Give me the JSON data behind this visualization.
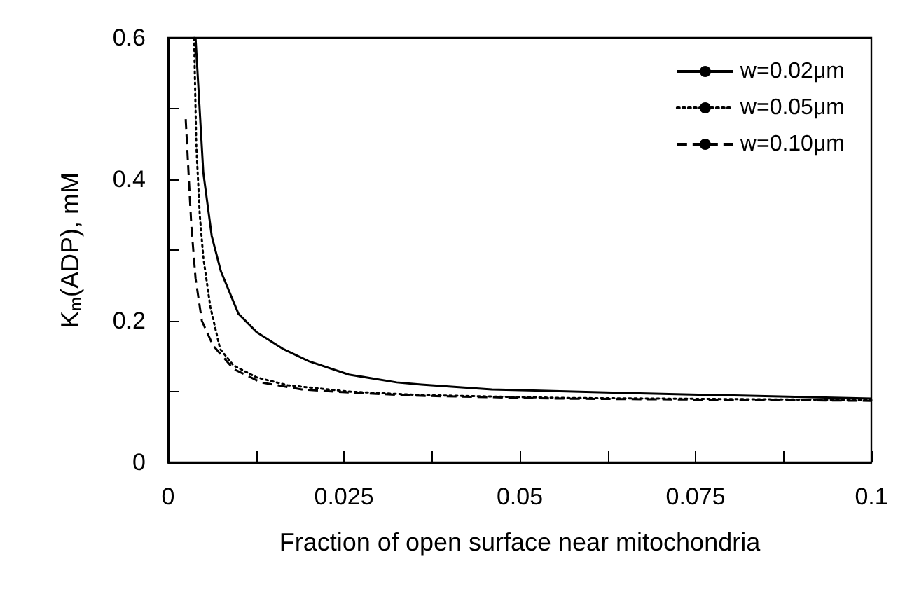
{
  "chart_data": {
    "type": "line",
    "xlabel": "Fraction of open surface near mitochondria",
    "ylabel": "K$_{m}$(ADP), mM",
    "xlim": [
      0,
      0.1
    ],
    "ylim": [
      0,
      0.6
    ],
    "xticks": [
      0,
      {
        "value": 0.0125,
        "label": null
      },
      0.025,
      {
        "value": 0.0375,
        "label": null
      },
      0.05,
      {
        "value": 0.0625,
        "label": null
      },
      0.075,
      {
        "value": 0.0875,
        "label": null
      },
      0.1
    ],
    "yticks": [
      0,
      {
        "value": 0.1,
        "label": null
      },
      0.2,
      {
        "value": 0.3,
        "label": null
      },
      0.4,
      {
        "value": 0.5,
        "label": null
      },
      0.6
    ],
    "legend": "top right",
    "grid": false,
    "marker": "none",
    "series": [
      {
        "name": "w=0.02μm",
        "color": "#000000",
        "line_style": "solid",
        "x": [
          0.0039,
          0.005,
          0.0062,
          0.0075,
          0.01,
          0.0126,
          0.0164,
          0.02,
          0.0257,
          0.0325,
          0.036,
          0.046,
          0.065,
          0.1
        ],
        "values": [
          0.6,
          0.41,
          0.32,
          0.27,
          0.21,
          0.184,
          0.16,
          0.143,
          0.124,
          0.113,
          0.11,
          0.103,
          0.098,
          0.09
        ]
      },
      {
        "name": "w=0.05μm",
        "color": "#000000",
        "line_style": "dotted",
        "x": [
          0.0037,
          0.004,
          0.0045,
          0.005,
          0.006,
          0.0074,
          0.0093,
          0.0126,
          0.017,
          0.0257,
          0.036,
          0.056,
          0.1
        ],
        "values": [
          0.6,
          0.45,
          0.35,
          0.29,
          0.22,
          0.16,
          0.137,
          0.12,
          0.109,
          0.1,
          0.095,
          0.091,
          0.088
        ]
      },
      {
        "name": "w=0.10μm",
        "color": "#000000",
        "line_style": "dashed",
        "x": [
          0.0025,
          0.0029,
          0.0033,
          0.0039,
          0.0048,
          0.0064,
          0.0093,
          0.0132,
          0.019,
          0.0267,
          0.036,
          0.056,
          0.1
        ],
        "values": [
          0.485,
          0.41,
          0.335,
          0.26,
          0.2,
          0.165,
          0.132,
          0.113,
          0.103,
          0.098,
          0.094,
          0.09,
          0.087
        ]
      }
    ]
  }
}
